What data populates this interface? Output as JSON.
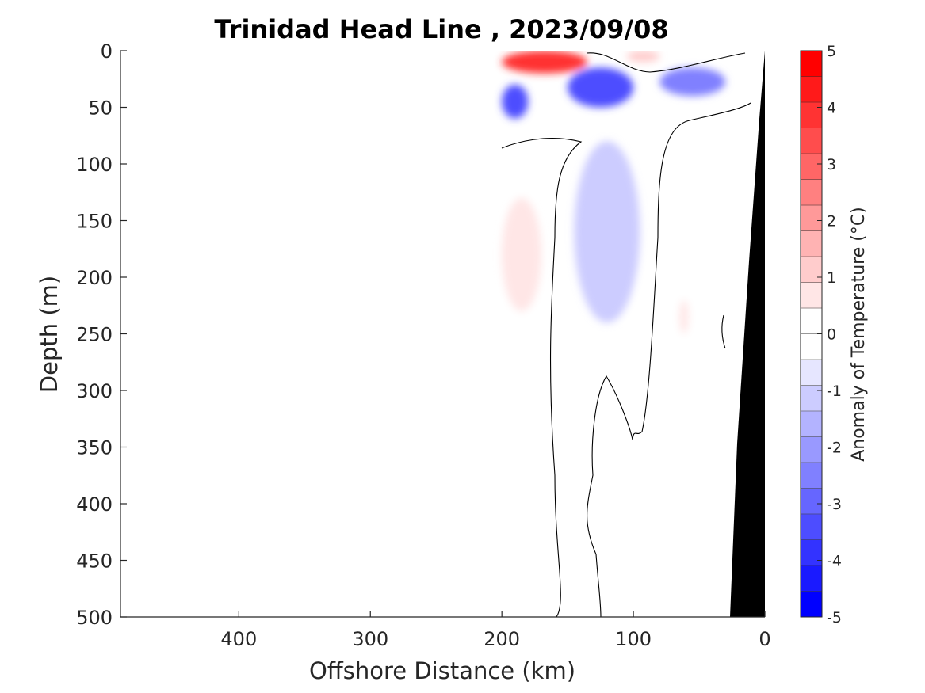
{
  "chart_data": {
    "type": "heatmap",
    "title": "Trinidad Head Line , 2023/09/08",
    "xlabel": "Offshore Distance (km)",
    "ylabel": "Depth (m)",
    "xlim": [
      490,
      0
    ],
    "ylim": [
      500,
      0
    ],
    "x_reversed": true,
    "y_reversed": true,
    "x_ticks": [
      400,
      300,
      200,
      100,
      0
    ],
    "y_ticks": [
      0,
      50,
      100,
      150,
      200,
      250,
      300,
      350,
      400,
      450,
      500
    ],
    "colorbar": {
      "label": "Anomaly of Temperature (°C)",
      "range": [
        -5,
        5
      ],
      "step": 0.5,
      "ticks": [
        5,
        4,
        3,
        2,
        1,
        0,
        -1,
        -2,
        -3,
        -4,
        -5
      ],
      "colors_low_to_high": [
        "#0000ff",
        "#1a1aff",
        "#3333ff",
        "#4d4dff",
        "#6666ff",
        "#8080ff",
        "#9999ff",
        "#b3b3ff",
        "#ccccff",
        "#e6e6ff",
        "#ffffff",
        "#ffffff",
        "#ffe6e6",
        "#ffcccc",
        "#ffb3b3",
        "#ff9999",
        "#ff8080",
        "#ff6666",
        "#ff4d4d",
        "#ff3333",
        "#ff1a1a",
        "#ff0000"
      ]
    },
    "data_extent_km": [
      200,
      0
    ],
    "contour_level": 0,
    "features": [
      {
        "type": "warm",
        "anomaly": 4.5,
        "x_range": [
          200,
          135
        ],
        "depth_range": [
          0,
          20
        ]
      },
      {
        "type": "warm",
        "anomaly": 1.5,
        "x_range": [
          105,
          80
        ],
        "depth_range": [
          0,
          10
        ]
      },
      {
        "type": "cold",
        "anomaly": -3.5,
        "x_range": [
          200,
          180
        ],
        "depth_range": [
          30,
          60
        ]
      },
      {
        "type": "cold",
        "anomaly": -3.5,
        "x_range": [
          150,
          100
        ],
        "depth_range": [
          15,
          50
        ]
      },
      {
        "type": "cold",
        "anomaly": -2.5,
        "x_range": [
          80,
          30
        ],
        "depth_range": [
          15,
          40
        ]
      },
      {
        "type": "cold",
        "anomaly": -0.75,
        "x_range": [
          145,
          95
        ],
        "depth_range": [
          80,
          240
        ]
      },
      {
        "type": "warm",
        "anomaly": 1.25,
        "x_range": [
          200,
          170
        ],
        "depth_range": [
          130,
          230
        ]
      },
      {
        "type": "warm",
        "anomaly": 0.75,
        "x_range": [
          200,
          170
        ],
        "depth_range": [
          120,
          500
        ]
      },
      {
        "type": "warm",
        "anomaly": 0.75,
        "x_range": [
          105,
          30
        ],
        "depth_range": [
          150,
          500
        ]
      },
      {
        "type": "warm",
        "anomaly": 1.25,
        "x_range": [
          65,
          58
        ],
        "depth_range": [
          220,
          250
        ]
      }
    ]
  }
}
